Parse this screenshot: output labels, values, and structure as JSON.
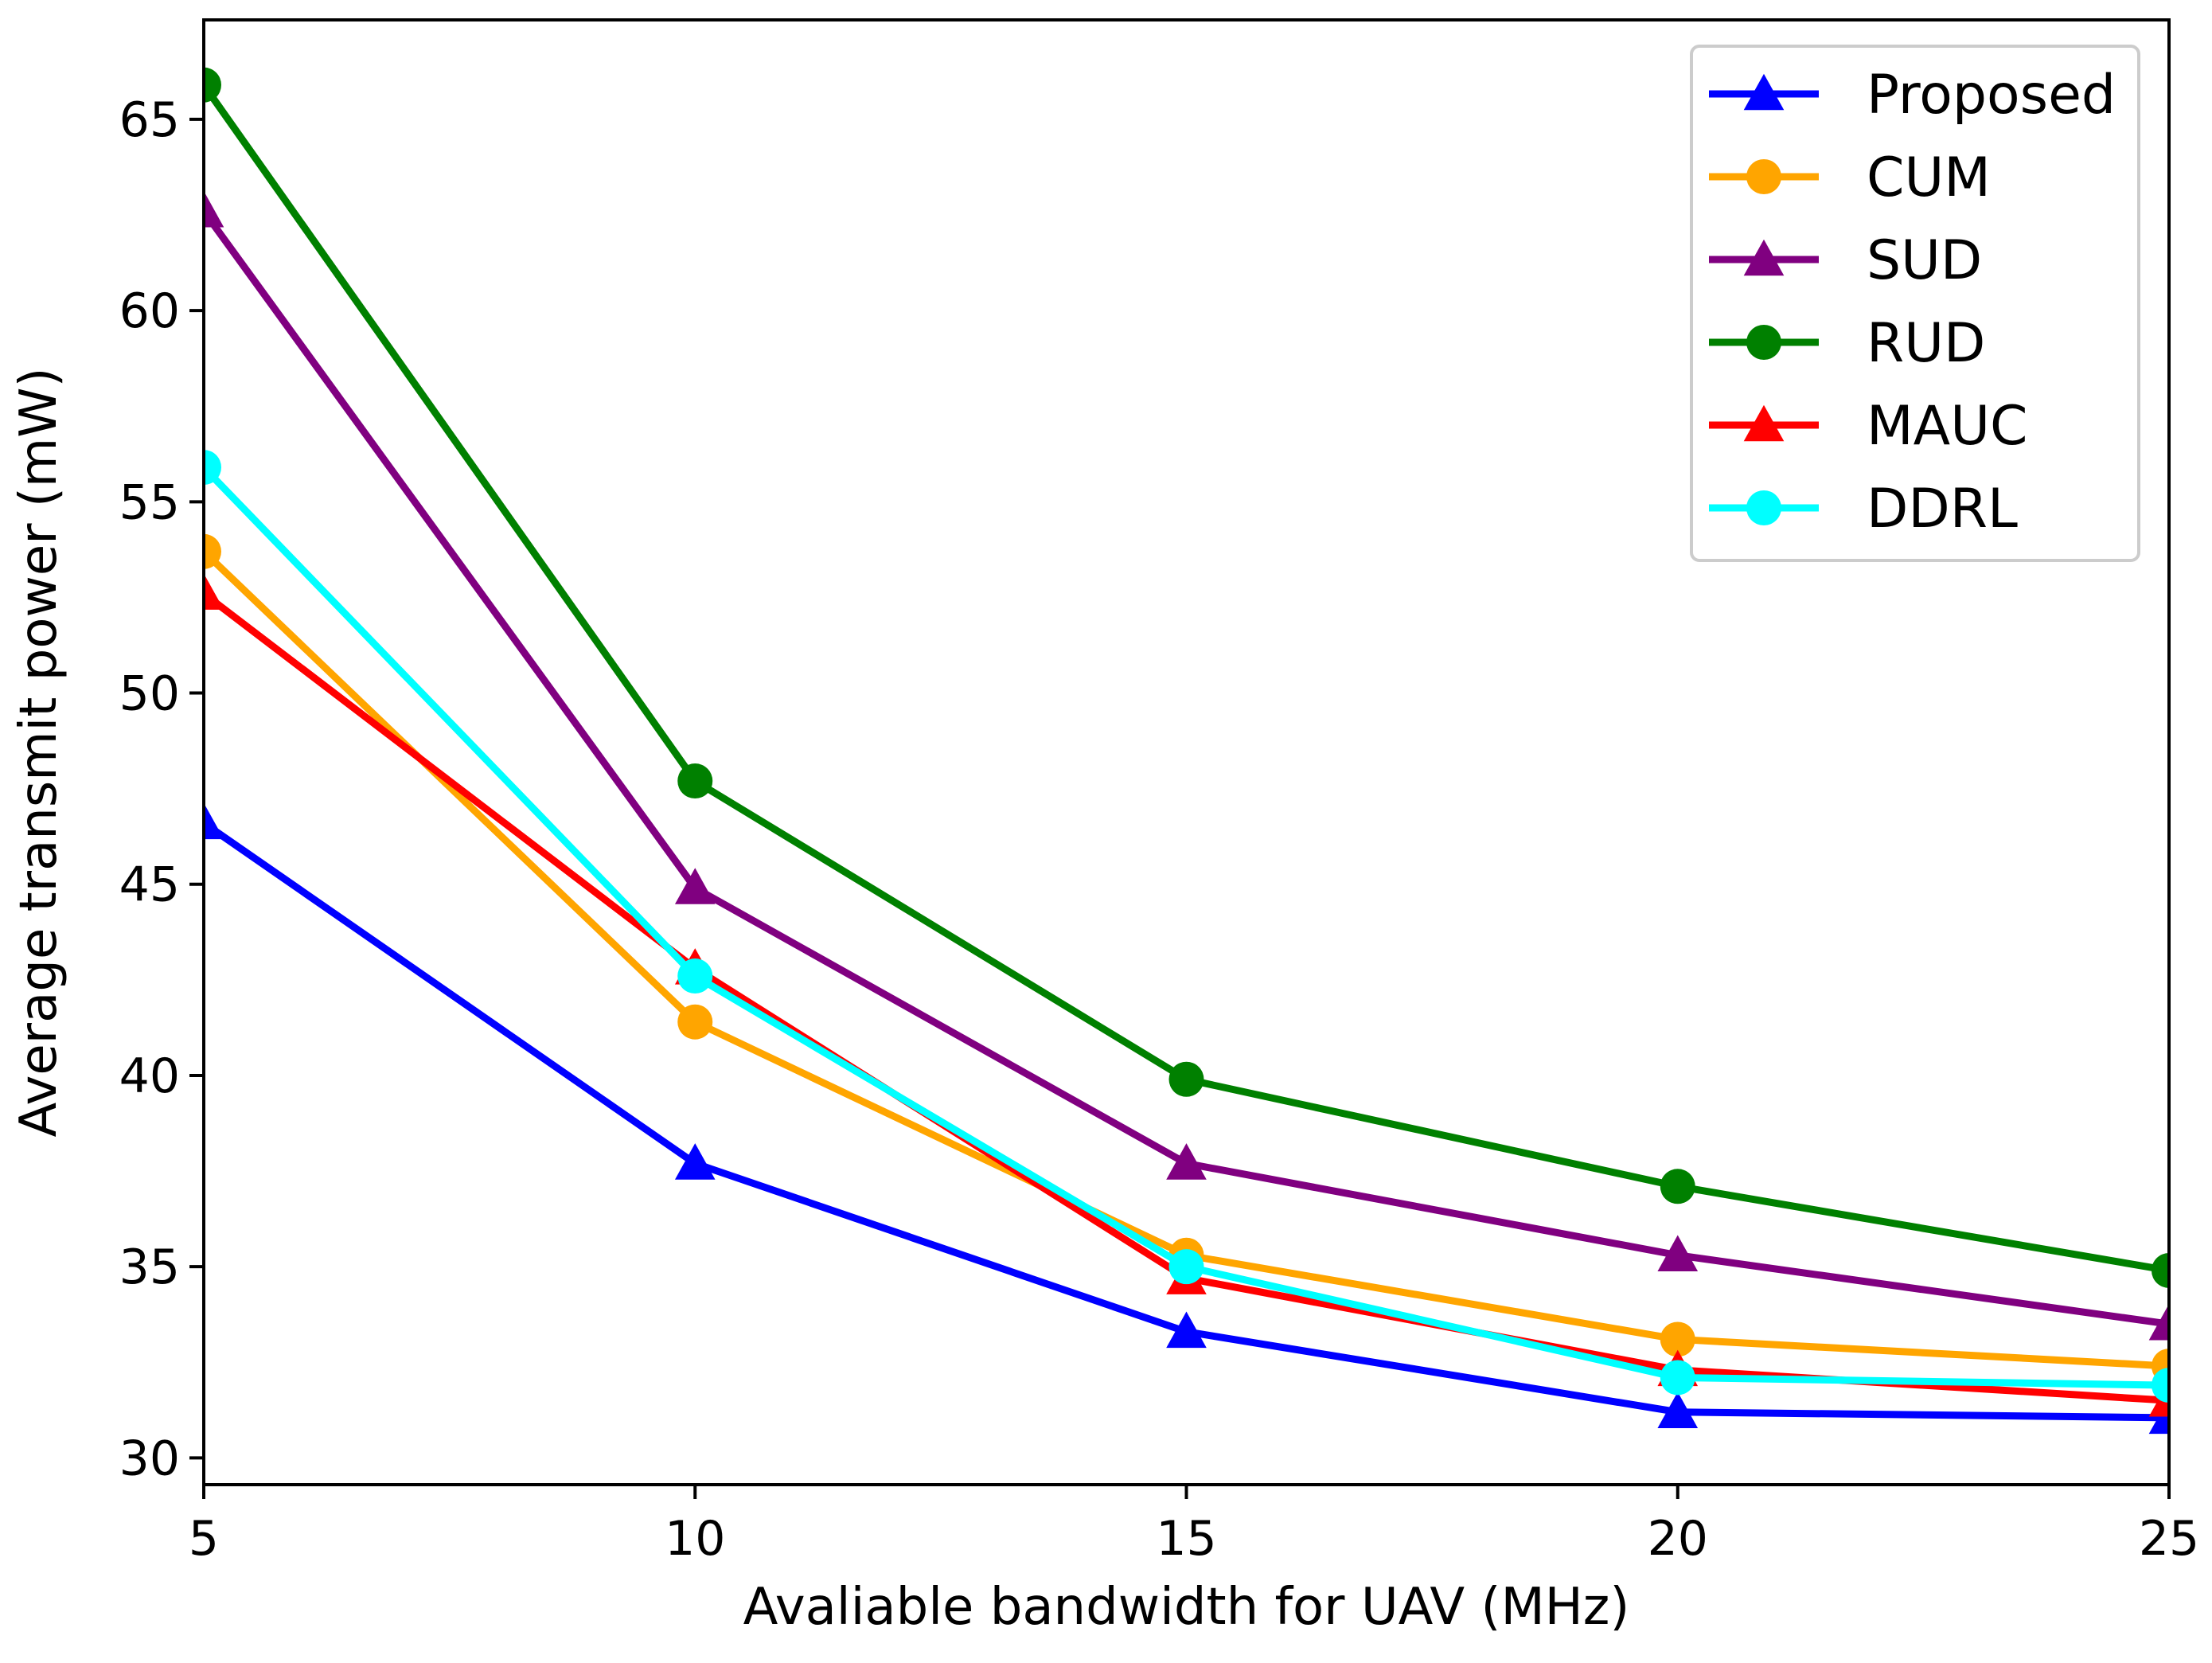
{
  "chart_data": {
    "type": "line",
    "title": "",
    "xlabel": "Avaliable bandwidth for UAV (MHz)",
    "ylabel": "Average transmit power (mW)",
    "x": [
      5,
      10,
      15,
      20,
      25
    ],
    "xlim": [
      5,
      25
    ],
    "ylim": [
      29.3,
      67.6
    ],
    "xticks": [
      5,
      10,
      15,
      20,
      25
    ],
    "yticks": [
      30,
      35,
      40,
      45,
      50,
      55,
      60,
      65
    ],
    "grid": false,
    "legend_position": "top-right",
    "series": [
      {
        "name": "Proposed",
        "values": [
          46.6,
          37.7,
          33.3,
          31.2,
          31.05
        ],
        "color": "#0000ff",
        "marker": "triangle"
      },
      {
        "name": "CUM",
        "values": [
          53.7,
          41.4,
          35.3,
          33.1,
          32.4
        ],
        "color": "#ffa500",
        "marker": "circle"
      },
      {
        "name": "SUD",
        "values": [
          62.6,
          44.9,
          37.7,
          35.3,
          33.5
        ],
        "color": "#800080",
        "marker": "triangle"
      },
      {
        "name": "RUD",
        "values": [
          65.9,
          47.7,
          39.9,
          37.1,
          34.9
        ],
        "color": "#008000",
        "marker": "circle"
      },
      {
        "name": "MAUC",
        "values": [
          52.6,
          42.8,
          34.7,
          32.3,
          31.5
        ],
        "color": "#ff0000",
        "marker": "triangle"
      },
      {
        "name": "DDRL",
        "values": [
          55.9,
          42.6,
          35.0,
          32.1,
          31.9
        ],
        "color": "#00ffff",
        "marker": "circle"
      }
    ]
  }
}
